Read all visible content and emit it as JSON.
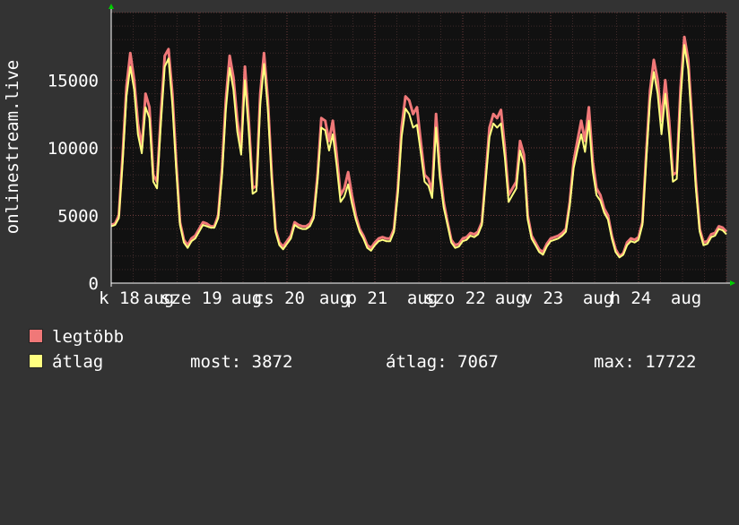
{
  "chart_data": {
    "type": "area",
    "ylabel": "onlinestream.live",
    "ylim": [
      0,
      20000
    ],
    "yticks": [
      0,
      5000,
      10000,
      15000
    ],
    "grid": true,
    "x_tick_labels": [
      {
        "label": "k 18",
        "x": 0.0
      },
      {
        "label": "aug",
        "x": 0.45
      },
      {
        "label": "sze 19",
        "x": 0.82
      },
      {
        "label": "aug",
        "x": 1.45
      },
      {
        "label": "cs 20",
        "x": 1.82
      },
      {
        "label": "aug",
        "x": 2.45
      },
      {
        "label": "p 21",
        "x": 2.82
      },
      {
        "label": "aug",
        "x": 3.45
      },
      {
        "label": "szo 22",
        "x": 3.82
      },
      {
        "label": "aug",
        "x": 4.45
      },
      {
        "label": "v 23",
        "x": 4.82
      },
      {
        "label": "aug",
        "x": 5.45
      },
      {
        "label": "h 24",
        "x": 5.82
      },
      {
        "label": "aug",
        "x": 6.45
      }
    ],
    "legend_placement": "bottom",
    "series": [
      {
        "name": "legtöbb",
        "color": "#f07878",
        "values": [
          4300,
          4400,
          5000,
          9500,
          14500,
          17000,
          15000,
          11800,
          10000,
          14000,
          13000,
          8000,
          7500,
          12500,
          16800,
          17300,
          14000,
          9000,
          4500,
          3200,
          2800,
          3300,
          3500,
          4000,
          4500,
          4400,
          4200,
          4200,
          5000,
          8500,
          13500,
          16800,
          15200,
          12000,
          10000,
          16000,
          12000,
          7000,
          7200,
          14000,
          17000,
          13500,
          8000,
          4000,
          3000,
          2700,
          3100,
          3500,
          4500,
          4300,
          4200,
          4200,
          4400,
          5000,
          8000,
          12200,
          12000,
          10500,
          12000,
          9500,
          6500,
          7000,
          8200,
          6500,
          5000,
          4000,
          3500,
          2800,
          2600,
          3000,
          3300,
          3400,
          3300,
          3300,
          4000,
          7000,
          11500,
          13800,
          13500,
          12500,
          13000,
          10500,
          8000,
          7700,
          6800,
          12500,
          8500,
          6000,
          4500,
          3200,
          2800,
          2900,
          3300,
          3400,
          3700,
          3600,
          3800,
          4500,
          8000,
          11500,
          12500,
          12200,
          12800,
          10000,
          6500,
          7000,
          7500,
          10500,
          9500,
          5000,
          3500,
          3000,
          2500,
          2300,
          2900,
          3300,
          3400,
          3500,
          3700,
          4000,
          6000,
          9000,
          10500,
          12000,
          10500,
          13000,
          9000,
          7000,
          6500,
          5500,
          5000,
          3500,
          2500,
          2000,
          2200,
          3000,
          3300,
          3200,
          3400,
          4500,
          9500,
          14200,
          16500,
          15000,
          12000,
          15000,
          12000,
          8000,
          8200,
          14500,
          18200,
          16500,
          12000,
          7500,
          4000,
          3000,
          3100,
          3600,
          3700,
          4200,
          4100,
          3800
        ]
      },
      {
        "name": "átlag",
        "color": "#ffff80",
        "values": [
          4200,
          4300,
          4800,
          9000,
          13800,
          16000,
          14300,
          11000,
          9600,
          13000,
          12200,
          7500,
          7000,
          11800,
          16000,
          16600,
          13200,
          8500,
          4300,
          3000,
          2600,
          3100,
          3300,
          3800,
          4300,
          4200,
          4100,
          4100,
          4800,
          8000,
          12800,
          15900,
          14300,
          11200,
          9500,
          15000,
          11200,
          6600,
          6800,
          13200,
          16200,
          12800,
          7600,
          3800,
          2800,
          2500,
          2900,
          3300,
          4300,
          4100,
          4000,
          4000,
          4200,
          4800,
          7600,
          11500,
          11300,
          9800,
          11000,
          8700,
          6000,
          6400,
          7300,
          5900,
          4700,
          3800,
          3300,
          2600,
          2400,
          2800,
          3100,
          3200,
          3100,
          3100,
          3800,
          6600,
          10800,
          12900,
          12500,
          11500,
          11700,
          9700,
          7500,
          7200,
          6300,
          11500,
          7800,
          5600,
          4300,
          3000,
          2600,
          2700,
          3100,
          3200,
          3500,
          3400,
          3600,
          4300,
          7600,
          10800,
          11800,
          11500,
          11800,
          9300,
          6000,
          6500,
          7000,
          9800,
          8800,
          4700,
          3300,
          2800,
          2300,
          2100,
          2700,
          3100,
          3200,
          3300,
          3500,
          3800,
          5700,
          8500,
          9800,
          11000,
          9700,
          12000,
          8300,
          6500,
          6100,
          5200,
          4700,
          3300,
          2300,
          1900,
          2100,
          2800,
          3100,
          3000,
          3200,
          4300,
          9000,
          13500,
          15600,
          14000,
          11000,
          14000,
          11000,
          7500,
          7700,
          13600,
          17600,
          15800,
          11400,
          7000,
          3800,
          2800,
          2900,
          3400,
          3500,
          4000,
          3900,
          3600
        ]
      }
    ]
  },
  "legend": {
    "items": [
      {
        "label": "legtöbb",
        "color": "#f07878"
      },
      {
        "label": "átlag",
        "color": "#ffff80"
      }
    ],
    "stats": {
      "most": "most: 3872",
      "atlag": "átlag: 7067",
      "max": "max: 17722"
    }
  }
}
